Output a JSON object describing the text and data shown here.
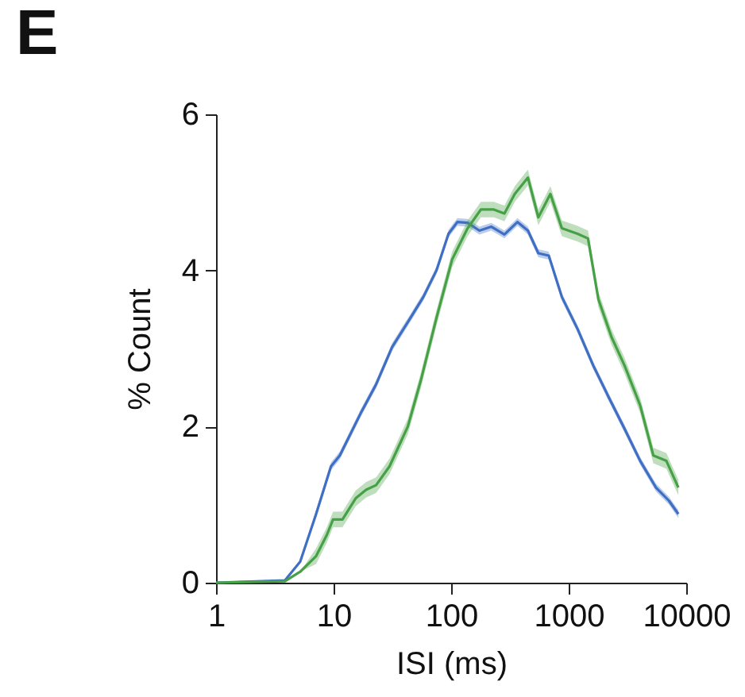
{
  "chart_data": {
    "type": "line",
    "title": "E",
    "xlabel": "ISI (ms)",
    "ylabel": "% Count",
    "log": "x",
    "xlim": [
      1,
      10000
    ],
    "xticks": [
      1,
      10,
      100,
      1000,
      10000
    ],
    "ylim": [
      0,
      6
    ],
    "yticks": [
      0,
      2,
      4,
      6
    ],
    "grid": false,
    "marker": "none",
    "line_style": "solid",
    "series": [
      {
        "color": "#3f6fc4",
        "x": [
          1,
          3.86,
          5.2,
          7.1,
          9.5,
          11.3,
          17,
          23,
          31.5,
          45,
          58,
          75,
          95,
          113,
          138,
          174,
          220,
          284,
          367,
          450,
          552,
          677,
          875,
          1190,
          1620,
          2200,
          2990,
          4060,
          5520,
          7130,
          8570
        ],
        "values": [
          0,
          0.03,
          0.27,
          0.88,
          1.49,
          1.63,
          2.17,
          2.54,
          3.02,
          3.39,
          3.66,
          4.0,
          4.47,
          4.62,
          4.61,
          4.51,
          4.56,
          4.46,
          4.62,
          4.51,
          4.22,
          4.19,
          3.66,
          3.25,
          2.78,
          2.37,
          1.97,
          1.56,
          1.22,
          1.05,
          0.88
        ],
        "lower": [
          0,
          0.03,
          0.27,
          0.83,
          1.44,
          1.58,
          2.12,
          2.49,
          2.97,
          3.34,
          3.61,
          3.95,
          4.42,
          4.57,
          4.56,
          4.46,
          4.51,
          4.41,
          4.57,
          4.46,
          4.17,
          4.14,
          3.61,
          3.2,
          2.73,
          2.32,
          1.92,
          1.51,
          1.17,
          1.0,
          0.83
        ],
        "upper": [
          0,
          0.03,
          0.27,
          0.93,
          1.54,
          1.68,
          2.22,
          2.59,
          3.07,
          3.44,
          3.71,
          4.05,
          4.52,
          4.67,
          4.66,
          4.56,
          4.61,
          4.51,
          4.67,
          4.56,
          4.27,
          4.24,
          3.71,
          3.3,
          2.83,
          2.42,
          2.02,
          1.61,
          1.27,
          1.1,
          0.93
        ]
      },
      {
        "color": "#46a046",
        "x": [
          1,
          3.86,
          5.2,
          7.1,
          8.75,
          9.9,
          11.9,
          15.4,
          18.9,
          23,
          29.9,
          42.8,
          55,
          75,
          102,
          138,
          179,
          231,
          284,
          348,
          450,
          552,
          699,
          875,
          1190,
          1460,
          1790,
          2310,
          2990,
          4060,
          5250,
          6780,
          8570
        ],
        "values": [
          0,
          0.02,
          0.14,
          0.34,
          0.61,
          0.81,
          0.81,
          1.08,
          1.19,
          1.25,
          1.49,
          2.0,
          2.58,
          3.39,
          4.14,
          4.54,
          4.78,
          4.78,
          4.73,
          4.98,
          5.19,
          4.68,
          4.98,
          4.54,
          4.47,
          4.41,
          3.63,
          3.15,
          2.78,
          2.27,
          1.63,
          1.56,
          1.22
        ],
        "lower": [
          0,
          0.02,
          0.14,
          0.24,
          0.51,
          0.71,
          0.71,
          0.98,
          1.09,
          1.15,
          1.39,
          1.9,
          2.48,
          3.29,
          4.04,
          4.44,
          4.68,
          4.68,
          4.63,
          4.88,
          5.09,
          4.58,
          4.88,
          4.44,
          4.37,
          4.31,
          3.53,
          3.05,
          2.68,
          2.17,
          1.53,
          1.46,
          1.12
        ],
        "upper": [
          0,
          0.02,
          0.14,
          0.44,
          0.71,
          0.91,
          0.91,
          1.18,
          1.29,
          1.35,
          1.59,
          2.1,
          2.68,
          3.49,
          4.24,
          4.64,
          4.88,
          4.88,
          4.83,
          5.08,
          5.29,
          4.78,
          5.08,
          4.64,
          4.57,
          4.51,
          3.73,
          3.25,
          2.88,
          2.37,
          1.73,
          1.66,
          1.32
        ]
      }
    ]
  }
}
